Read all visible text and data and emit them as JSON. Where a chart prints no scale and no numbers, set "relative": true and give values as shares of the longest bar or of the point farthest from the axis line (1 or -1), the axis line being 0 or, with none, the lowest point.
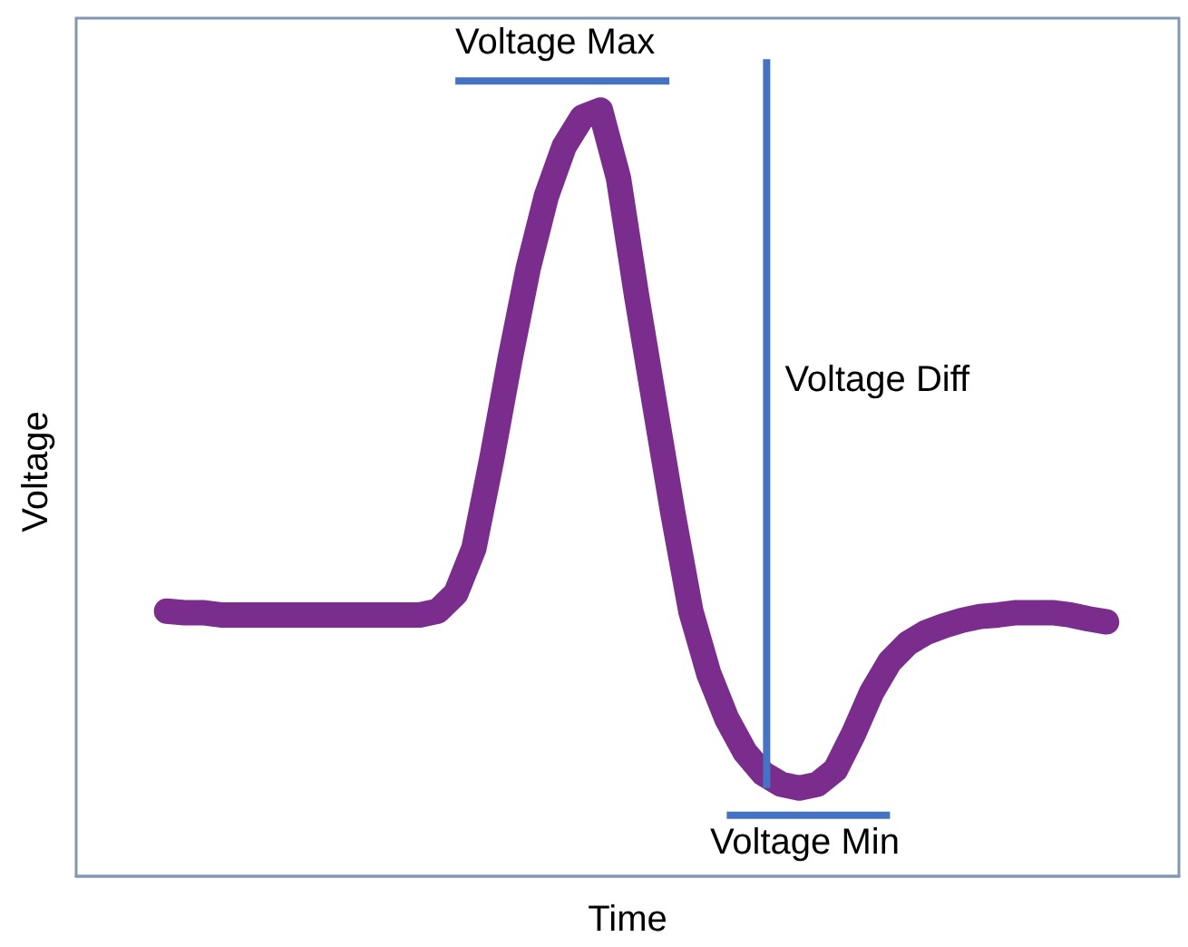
{
  "chart_data": {
    "type": "line",
    "relative": true,
    "xlabel": "Time",
    "ylabel": "Voltage",
    "annotations": [
      "Voltage Max",
      "Voltage Diff",
      "Voltage Min"
    ],
    "categories": [
      null,
      null,
      null,
      null,
      null,
      null,
      null,
      null,
      null,
      null,
      null,
      null,
      null,
      null,
      null,
      null,
      null,
      null,
      null,
      null,
      null,
      null,
      null,
      null,
      null,
      null,
      null,
      null,
      null,
      null,
      null,
      null,
      null,
      null,
      null,
      null,
      null,
      null,
      null,
      null,
      null,
      null,
      null,
      null,
      null,
      null,
      null,
      null,
      null,
      null,
      null,
      null,
      null,
      null,
      null,
      null,
      null,
      null,
      null,
      null,
      null,
      null
    ],
    "series": [
      {
        "color": "#7b2d8e",
        "values": [
          null,
          null,
          null,
          null,
          null,
          0.346,
          0.344,
          0.344,
          0.341,
          0.341,
          0.341,
          0.341,
          0.341,
          0.341,
          0.341,
          0.341,
          0.341,
          0.341,
          0.341,
          0.341,
          0.346,
          0.369,
          0.428,
          0.546,
          0.675,
          0.793,
          0.887,
          0.953,
          0.991,
          1,
          0.911,
          0.758,
          0.616,
          0.475,
          0.346,
          0.264,
          0.205,
          0.162,
          0.134,
          0.12,
          0.115,
          0.12,
          0.139,
          0.186,
          0.24,
          0.28,
          0.304,
          0.318,
          0.327,
          0.334,
          0.339,
          0.341,
          0.344,
          0.344,
          0.344,
          0.341,
          0.336,
          0.332,
          null,
          null,
          null,
          null
        ]
      }
    ],
    "grid": false,
    "line_style": "solid"
  }
}
